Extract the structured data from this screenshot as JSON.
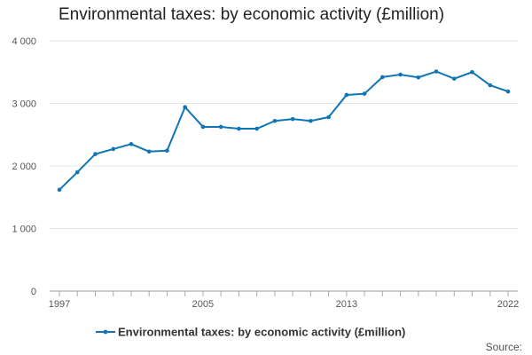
{
  "chart_data": {
    "type": "line",
    "title": "Environmental taxes: by economic activity (£million)",
    "xlabel": "",
    "ylabel": "",
    "x": [
      1997,
      1998,
      1999,
      2000,
      2001,
      2002,
      2003,
      2004,
      2005,
      2006,
      2007,
      2008,
      2009,
      2010,
      2011,
      2012,
      2013,
      2014,
      2015,
      2016,
      2017,
      2018,
      2019,
      2020,
      2021,
      2022
    ],
    "x_tick_labels": [
      {
        "value": 1997,
        "label": "1997"
      },
      {
        "value": 2005,
        "label": "2005"
      },
      {
        "value": 2013,
        "label": "2013"
      },
      {
        "value": 2022,
        "label": "2022"
      }
    ],
    "xlim": [
      1997,
      2022
    ],
    "ylim": [
      0,
      4000
    ],
    "y_ticks": [
      {
        "value": 0,
        "label": "0"
      },
      {
        "value": 1000,
        "label": "1 000"
      },
      {
        "value": 2000,
        "label": "2 000"
      },
      {
        "value": 3000,
        "label": "3 000"
      },
      {
        "value": 4000,
        "label": "4 000"
      }
    ],
    "grid": true,
    "legend_position": "bottom-center",
    "series": [
      {
        "name": "Environmental taxes: by economic activity (£million)",
        "color": "#0f75b5",
        "values": [
          1620,
          1900,
          2190,
          2270,
          2350,
          2230,
          2245,
          2940,
          2625,
          2625,
          2595,
          2595,
          2720,
          2750,
          2720,
          2780,
          3135,
          3155,
          3420,
          3460,
          3415,
          3510,
          3395,
          3500,
          3290,
          3190
        ]
      }
    ]
  },
  "footer": {
    "source_label": "Source:"
  }
}
